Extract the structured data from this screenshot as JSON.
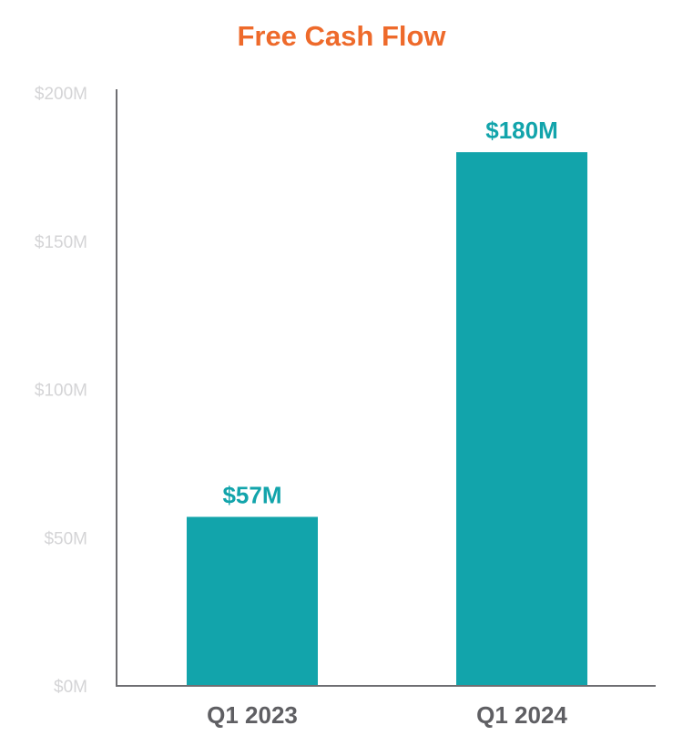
{
  "chart_data": {
    "type": "bar",
    "title": "Free Cash Flow",
    "categories": [
      "Q1 2023",
      "Q1 2024"
    ],
    "values": [
      57,
      180
    ],
    "data_labels": [
      "$57M",
      "$180M"
    ],
    "ylim": [
      0,
      200
    ],
    "yticks": [
      0,
      50,
      100,
      150,
      200
    ],
    "ytick_labels": [
      "$0M",
      "$50M",
      "$100M",
      "$150M",
      "$200M"
    ],
    "xlabel": "",
    "ylabel": "",
    "grid": false,
    "legend": "none",
    "colors": {
      "bar": "#12a4ab",
      "title": "#ee6a2b",
      "axis": "#6e6e72",
      "tick_label": "#d4d4d6",
      "category_label": "#5f5f63",
      "data_label": "#12a4ab"
    }
  }
}
